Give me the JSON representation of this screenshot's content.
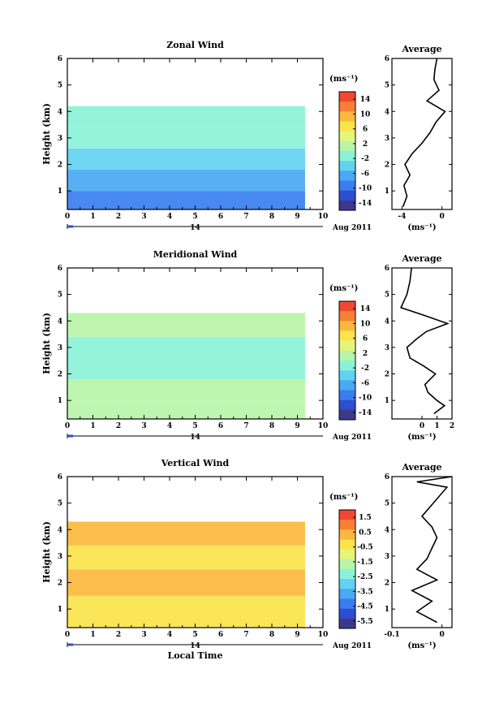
{
  "figure": {
    "date_label": "Aug 2011",
    "day_label": "14",
    "x_label": "Local Time",
    "y_label": "Height (km)",
    "unit_label": "(ms⁻¹)",
    "average_title": "Average"
  },
  "chart_data": [
    {
      "type": "heatmap",
      "title": "Zonal Wind",
      "xlabel": "",
      "ylabel": "Height (km)",
      "xlim": [
        0,
        10
      ],
      "ylim": [
        0.3,
        6
      ],
      "x_ticks": [
        0,
        1,
        2,
        3,
        4,
        5,
        6,
        7,
        8,
        9,
        10
      ],
      "y_ticks": [
        1,
        2,
        3,
        4,
        5,
        6
      ],
      "colorbar": {
        "label": "(ms⁻¹)",
        "ticks": [
          14,
          10,
          6,
          2,
          -2,
          -6,
          -10,
          -14
        ]
      },
      "layers": [
        {
          "y": [
            0.3,
            1.0
          ],
          "value": -9,
          "x_end": 9.3
        },
        {
          "y": [
            1.0,
            1.8
          ],
          "value": -7,
          "x_end": 9.3
        },
        {
          "y": [
            1.8,
            2.6
          ],
          "value": -5,
          "x_end": 9.3
        },
        {
          "y": [
            2.6,
            3.4
          ],
          "value": -2,
          "x_end": 9.3
        },
        {
          "y": [
            3.4,
            4.2
          ],
          "value": -1,
          "x_end": 9.3
        }
      ],
      "average": {
        "xlim": [
          -5,
          1
        ],
        "x_ticks": [
          -4,
          0
        ],
        "xlabel": "(ms⁻¹)",
        "height": [
          0.4,
          0.8,
          1.2,
          1.6,
          2.0,
          2.4,
          2.8,
          3.2,
          3.6,
          4.0,
          4.4,
          4.8,
          5.2,
          5.6,
          6.0
        ],
        "value": [
          -3.9,
          -3.5,
          -3.8,
          -3.2,
          -3.7,
          -3.0,
          -2.0,
          -1.2,
          -0.6,
          0.3,
          -1.5,
          -0.3,
          -0.8,
          -0.7,
          -0.5
        ]
      }
    },
    {
      "type": "heatmap",
      "title": "Meridional Wind",
      "xlabel": "",
      "ylabel": "Height (km)",
      "xlim": [
        0,
        10
      ],
      "ylim": [
        0.3,
        6
      ],
      "x_ticks": [
        0,
        1,
        2,
        3,
        4,
        5,
        6,
        7,
        8,
        9,
        10
      ],
      "y_ticks": [
        1,
        2,
        3,
        4,
        5,
        6
      ],
      "colorbar": {
        "label": "(ms⁻¹)",
        "ticks": [
          14,
          10,
          6,
          2,
          -2,
          -6,
          -10,
          -14
        ]
      },
      "layers": [
        {
          "y": [
            0.3,
            1.0
          ],
          "value": 1.0,
          "x_end": 9.3
        },
        {
          "y": [
            1.0,
            1.8
          ],
          "value": 0.5,
          "x_end": 9.3
        },
        {
          "y": [
            1.8,
            2.6
          ],
          "value": -0.3,
          "x_end": 9.3
        },
        {
          "y": [
            2.6,
            3.4
          ],
          "value": -1.0,
          "x_end": 9.3
        },
        {
          "y": [
            3.4,
            4.3
          ],
          "value": 0.2,
          "x_end": 9.3
        }
      ],
      "average": {
        "xlim": [
          -2,
          2
        ],
        "x_ticks": [
          0,
          1,
          2
        ],
        "xlabel": "(ms⁻¹)",
        "height": [
          0.5,
          0.8,
          1.0,
          1.3,
          1.6,
          2.0,
          2.3,
          2.6,
          3.0,
          3.3,
          3.6,
          3.9,
          4.2,
          4.5,
          5.0,
          5.5,
          6.0
        ],
        "value": [
          0.8,
          1.5,
          1.0,
          0.4,
          0.2,
          0.9,
          0.1,
          -0.8,
          -1.0,
          -0.4,
          0.3,
          1.7,
          0.2,
          -1.4,
          -1.0,
          -0.8,
          -0.7
        ]
      }
    },
    {
      "type": "heatmap",
      "title": "Vertical Wind",
      "xlabel": "Local Time",
      "ylabel": "Height (km)",
      "xlim": [
        0,
        10
      ],
      "ylim": [
        0.3,
        6
      ],
      "x_ticks": [
        0,
        1,
        2,
        3,
        4,
        5,
        6,
        7,
        8,
        9,
        10
      ],
      "y_ticks": [
        1,
        2,
        3,
        4,
        5,
        6
      ],
      "colorbar": {
        "label": "(ms⁻¹)",
        "ticks": [
          1.5,
          0.5,
          -0.5,
          -1.5,
          -2.5,
          -3.5,
          -4.5,
          -5.5
        ]
      },
      "layers": [
        {
          "y": [
            0.3,
            1.5
          ],
          "value": -0.2,
          "x_end": 9.3
        },
        {
          "y": [
            1.5,
            2.5
          ],
          "value": 0.1,
          "x_end": 9.3
        },
        {
          "y": [
            2.5,
            3.4
          ],
          "value": -0.1,
          "x_end": 9.3
        },
        {
          "y": [
            3.4,
            4.3
          ],
          "value": 0.3,
          "x_end": 9.3
        }
      ],
      "average": {
        "xlim": [
          -0.1,
          0.02
        ],
        "x_ticks": [
          -0.1,
          0.0
        ],
        "xlabel": "(ms⁻¹)",
        "height": [
          0.5,
          0.9,
          1.3,
          1.7,
          2.1,
          2.5,
          2.9,
          3.3,
          3.7,
          4.1,
          4.5,
          5.6,
          5.8,
          6.0
        ],
        "value": [
          -0.01,
          -0.05,
          -0.02,
          -0.06,
          -0.01,
          -0.05,
          -0.03,
          -0.02,
          -0.01,
          -0.02,
          -0.04,
          0.01,
          -0.05,
          0.02
        ]
      }
    }
  ],
  "palette": [
    "#3a3a8c",
    "#2c4ed0",
    "#3a7df0",
    "#49a9f2",
    "#62d2f0",
    "#8af2d8",
    "#b9f5a8",
    "#e5f57a",
    "#fbe34a",
    "#fbb83e",
    "#f78036",
    "#f04832"
  ],
  "vertical_palette": [
    "#3a3a8c",
    "#2c4ed0",
    "#3a7df0",
    "#49a9f2",
    "#62d2f0",
    "#8af2d8",
    "#b9f5a8",
    "#e5f57a",
    "#fbe34a",
    "#fbb83e",
    "#f78036",
    "#f04832"
  ]
}
